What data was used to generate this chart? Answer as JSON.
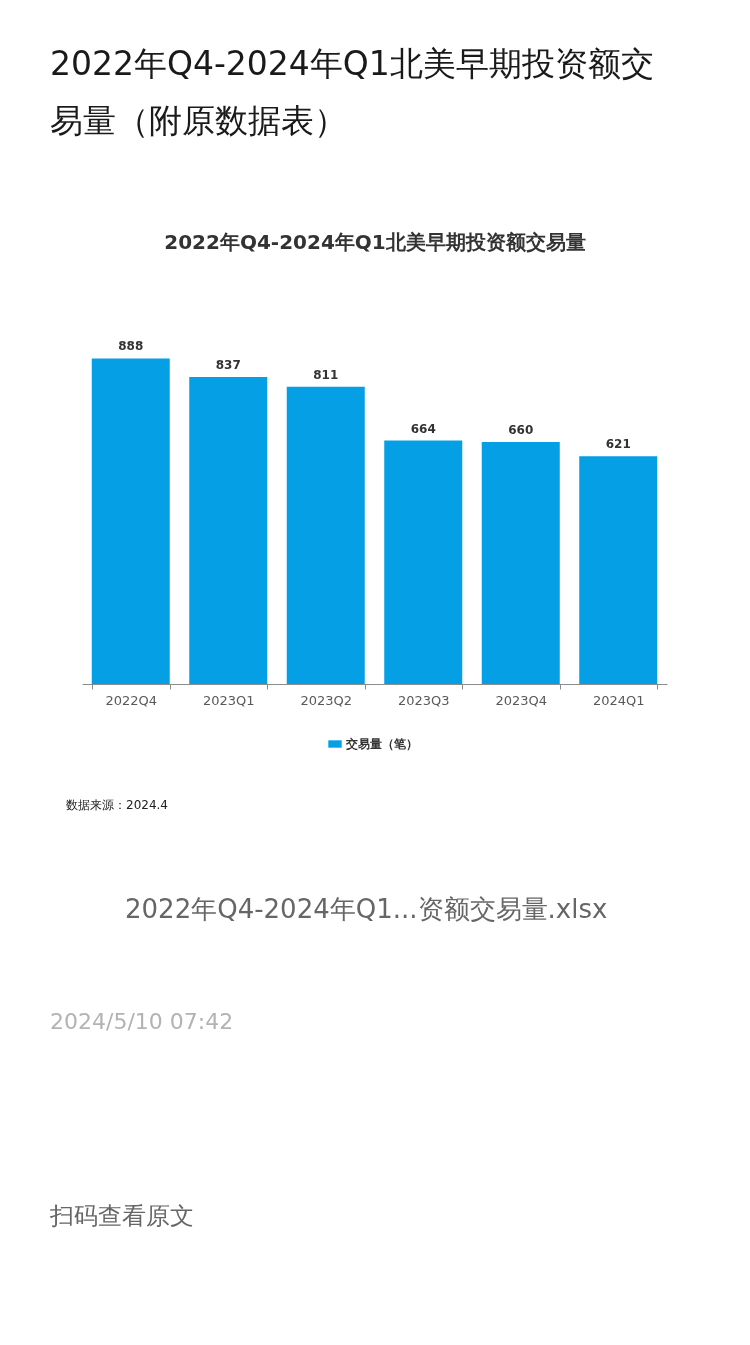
{
  "chart_data": {
    "type": "bar",
    "title": "2022年Q4-2024年Q1北美早期投资额交易量（附原数据表）",
    "subtitle": "2022年Q4-2024年Q1北美早期投资额交易量",
    "categories": [
      "2022Q4",
      "2023Q1",
      "2023Q2",
      "2023Q3",
      "2023Q4",
      "2024Q1"
    ],
    "series": [
      {
        "name": "交易量（笔）",
        "color": "#049fe5",
        "values": [
          888,
          837,
          811,
          664,
          660,
          621
        ]
      }
    ],
    "data_labels": true,
    "legend": "bottom",
    "tick_labels": "x",
    "grid": false,
    "annotations": [
      "数据来源：2024.4",
      "2022年Q4-2024年Q1...资额交易量.xlsx",
      "2024/5/10 07:42",
      "扫码查看原文"
    ]
  }
}
